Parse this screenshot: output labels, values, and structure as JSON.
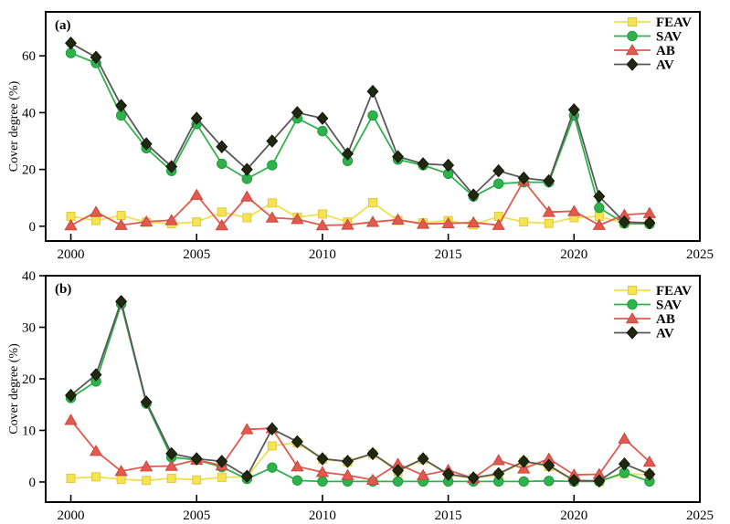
{
  "figure": {
    "background": "#ffffff",
    "text_color": "#000000",
    "frame_color": "#000000"
  },
  "chart_data": [
    {
      "type": "line",
      "panel_label": "(a)",
      "ylabel": "Cover degree (%)",
      "xlim": [
        1999,
        2025
      ],
      "ylim": [
        -5.2,
        75.5
      ],
      "xticks": [
        2000,
        2005,
        2010,
        2015,
        2020,
        2025
      ],
      "yticks": [
        0,
        20,
        40,
        60
      ],
      "grid": false,
      "legend_position": "top-right",
      "x": [
        2000,
        2001,
        2002,
        2003,
        2004,
        2005,
        2006,
        2007,
        2008,
        2009,
        2010,
        2011,
        2012,
        2013,
        2014,
        2015,
        2016,
        2017,
        2018,
        2019,
        2020,
        2021,
        2022,
        2023
      ],
      "series": [
        {
          "name": "FEAV",
          "marker": "square",
          "color": "#f5e352",
          "edge_color": "#dfc93f",
          "line_color": "#efdf52",
          "values": [
            3.5,
            2.0,
            3.8,
            1.4,
            0.9,
            1.5,
            5.0,
            3.0,
            8.2,
            3.2,
            4.3,
            1.5,
            8.3,
            2.0,
            1.2,
            2.0,
            0.5,
            3.5,
            1.5,
            1.0,
            3.0,
            3.5,
            1.0,
            1.0
          ]
        },
        {
          "name": "SAV",
          "marker": "circle",
          "color": "#2fb14c",
          "edge_color": "#1f9c3e",
          "line_color": "#2fb14c",
          "values": [
            61.0,
            57.5,
            39.0,
            27.5,
            19.5,
            36.0,
            22.0,
            16.7,
            21.5,
            38.0,
            33.5,
            23.0,
            39.0,
            23.5,
            21.5,
            18.5,
            10.5,
            15.0,
            15.5,
            15.5,
            39.0,
            6.5,
            1.0,
            0.8
          ]
        },
        {
          "name": "AB",
          "marker": "triangle",
          "color": "#e2594e",
          "edge_color": "#c9483f",
          "line_color": "#e2594e",
          "values": [
            0.3,
            5.0,
            0.4,
            1.6,
            2.1,
            11.0,
            0.3,
            10.4,
            3.0,
            2.5,
            0.3,
            0.5,
            1.5,
            2.3,
            0.8,
            1.0,
            1.3,
            0.4,
            16.0,
            5.0,
            5.3,
            0.4,
            4.0,
            4.6
          ]
        },
        {
          "name": "AV",
          "marker": "diamond",
          "color": "#20290f",
          "edge_color": "#10150a",
          "line_color": "#595959",
          "values": [
            64.5,
            59.5,
            42.5,
            29.0,
            21.0,
            38.0,
            28.0,
            20.0,
            30.0,
            40.0,
            38.0,
            25.5,
            47.5,
            24.5,
            22.0,
            21.5,
            11.0,
            19.5,
            17.0,
            16.0,
            41.0,
            10.5,
            1.5,
            1.2
          ]
        }
      ]
    },
    {
      "type": "line",
      "panel_label": "(b)",
      "ylabel": "Cover degree (%)",
      "xlim": [
        1999,
        2025
      ],
      "ylim": [
        -3.9,
        40
      ],
      "xticks": [
        2000,
        2005,
        2010,
        2015,
        2020,
        2025
      ],
      "yticks": [
        0,
        10,
        20,
        30,
        40
      ],
      "grid": false,
      "legend_position": "top-right",
      "x": [
        2000,
        2001,
        2002,
        2003,
        2004,
        2005,
        2006,
        2007,
        2008,
        2009,
        2010,
        2011,
        2012,
        2013,
        2014,
        2015,
        2016,
        2017,
        2018,
        2019,
        2020,
        2021,
        2022,
        2023
      ],
      "series": [
        {
          "name": "FEAV",
          "marker": "square",
          "color": "#f5e352",
          "edge_color": "#dfc93f",
          "line_color": "#efdf52",
          "values": [
            0.7,
            1.0,
            0.5,
            0.3,
            0.7,
            0.4,
            0.9,
            1.0,
            7.0,
            7.6,
            4.4,
            3.9,
            5.4,
            2.0,
            4.4,
            1.4,
            0.7,
            1.4,
            3.9,
            3.0,
            0.2,
            0.1,
            1.6,
            1.4
          ]
        },
        {
          "name": "SAV",
          "marker": "circle",
          "color": "#2fb14c",
          "edge_color": "#1f9c3e",
          "line_color": "#2fb14c",
          "values": [
            16.3,
            19.5,
            34.5,
            15.2,
            4.8,
            4.3,
            2.9,
            0.6,
            2.8,
            0.3,
            0.1,
            0.1,
            0.1,
            0.1,
            0.1,
            0.1,
            0.1,
            0.1,
            0.1,
            0.2,
            0.1,
            0.1,
            1.8,
            0.1
          ]
        },
        {
          "name": "AB",
          "marker": "triangle",
          "color": "#e2594e",
          "edge_color": "#c9483f",
          "line_color": "#e2594e",
          "values": [
            12.0,
            6.0,
            2.1,
            3.0,
            3.1,
            4.3,
            3.2,
            10.2,
            10.4,
            3.0,
            1.9,
            1.3,
            0.4,
            3.5,
            1.3,
            2.3,
            0.7,
            4.2,
            2.6,
            4.5,
            1.4,
            1.5,
            8.4,
            3.9
          ]
        },
        {
          "name": "AV",
          "marker": "diamond",
          "color": "#20290f",
          "edge_color": "#10150a",
          "line_color": "#595959",
          "values": [
            16.8,
            20.8,
            35.0,
            15.5,
            5.5,
            4.5,
            4.0,
            1.1,
            10.3,
            7.8,
            4.5,
            4.0,
            5.5,
            2.2,
            4.5,
            1.5,
            0.8,
            1.6,
            4.0,
            3.2,
            0.3,
            0.2,
            3.5,
            1.5
          ]
        }
      ]
    }
  ]
}
